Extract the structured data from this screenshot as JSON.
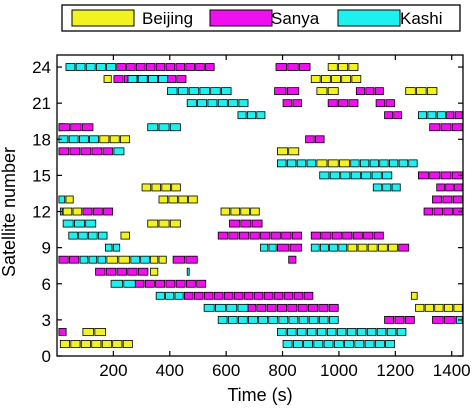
{
  "chart_data": {
    "type": "scatter",
    "xlabel": "Time (s)",
    "ylabel": "Satellite number",
    "xlim": [
      0,
      1440
    ],
    "ylim": [
      0,
      25
    ],
    "xticks": [
      200,
      400,
      600,
      800,
      1000,
      1200,
      1400
    ],
    "yticks": [
      0,
      3,
      6,
      9,
      12,
      15,
      18,
      21,
      24
    ],
    "legend_position": "top",
    "grid": false,
    "series": [
      {
        "name": "Beijing",
        "color": "#f2f221",
        "intervals": [
          {
            "sat": 1,
            "start": 10,
            "end": 270
          },
          {
            "sat": 2,
            "start": 90,
            "end": 175
          },
          {
            "sat": 4,
            "start": 1270,
            "end": 1440
          },
          {
            "sat": 5,
            "start": 1255,
            "end": 1280
          },
          {
            "sat": 7,
            "start": 330,
            "end": 360
          },
          {
            "sat": 8,
            "start": 175,
            "end": 260
          },
          {
            "sat": 8,
            "start": 330,
            "end": 390
          },
          {
            "sat": 9,
            "start": 1030,
            "end": 1210
          },
          {
            "sat": 10,
            "start": 225,
            "end": 260
          },
          {
            "sat": 11,
            "start": 320,
            "end": 440
          },
          {
            "sat": 12,
            "start": 20,
            "end": 90
          },
          {
            "sat": 12,
            "start": 580,
            "end": 720
          },
          {
            "sat": 13,
            "start": 30,
            "end": 60
          },
          {
            "sat": 13,
            "start": 360,
            "end": 500
          },
          {
            "sat": 14,
            "start": 300,
            "end": 440
          },
          {
            "sat": 16,
            "start": 920,
            "end": 1040
          },
          {
            "sat": 17,
            "start": 780,
            "end": 860
          },
          {
            "sat": 18,
            "start": 150,
            "end": 260
          },
          {
            "sat": 19,
            "start": 5,
            "end": 30
          },
          {
            "sat": 22,
            "start": 1235,
            "end": 1350
          },
          {
            "sat": 22,
            "start": 920,
            "end": 1000
          },
          {
            "sat": 23,
            "start": 900,
            "end": 1080
          },
          {
            "sat": 23,
            "start": 165,
            "end": 195
          },
          {
            "sat": 24,
            "start": 960,
            "end": 1070
          }
        ]
      },
      {
        "name": "Sanya",
        "color": "#ee10ee",
        "intervals": [
          {
            "sat": 2,
            "start": 5,
            "end": 35
          },
          {
            "sat": 3,
            "start": 1160,
            "end": 1270
          },
          {
            "sat": 3,
            "start": 1330,
            "end": 1415
          },
          {
            "sat": 4,
            "start": 670,
            "end": 1000
          },
          {
            "sat": 5,
            "start": 450,
            "end": 910
          },
          {
            "sat": 6,
            "start": 275,
            "end": 530
          },
          {
            "sat": 7,
            "start": 135,
            "end": 325
          },
          {
            "sat": 8,
            "start": 5,
            "end": 80
          },
          {
            "sat": 8,
            "start": 410,
            "end": 500
          },
          {
            "sat": 8,
            "start": 820,
            "end": 850
          },
          {
            "sat": 9,
            "start": 780,
            "end": 870
          },
          {
            "sat": 9,
            "start": 1210,
            "end": 1250
          },
          {
            "sat": 10,
            "start": 570,
            "end": 870
          },
          {
            "sat": 10,
            "start": 900,
            "end": 1160
          },
          {
            "sat": 11,
            "start": 610,
            "end": 730
          },
          {
            "sat": 12,
            "start": 90,
            "end": 200
          },
          {
            "sat": 12,
            "start": 1300,
            "end": 1440
          },
          {
            "sat": 13,
            "start": 1330,
            "end": 1440
          },
          {
            "sat": 14,
            "start": 1345,
            "end": 1440
          },
          {
            "sat": 15,
            "start": 1280,
            "end": 1440
          },
          {
            "sat": 17,
            "start": 5,
            "end": 200
          },
          {
            "sat": 18,
            "start": 880,
            "end": 950
          },
          {
            "sat": 19,
            "start": 5,
            "end": 130
          },
          {
            "sat": 19,
            "start": 1320,
            "end": 1440
          },
          {
            "sat": 20,
            "start": 1160,
            "end": 1225
          },
          {
            "sat": 20,
            "start": 1380,
            "end": 1440
          },
          {
            "sat": 21,
            "start": 800,
            "end": 870
          },
          {
            "sat": 21,
            "start": 960,
            "end": 1070
          },
          {
            "sat": 21,
            "start": 1130,
            "end": 1200
          },
          {
            "sat": 22,
            "start": 770,
            "end": 860
          },
          {
            "sat": 22,
            "start": 1060,
            "end": 1160
          },
          {
            "sat": 23,
            "start": 200,
            "end": 460
          },
          {
            "sat": 24,
            "start": 210,
            "end": 560
          },
          {
            "sat": 24,
            "start": 775,
            "end": 900
          }
        ]
      },
      {
        "name": "Kashi",
        "color": "#1ef0f0",
        "intervals": [
          {
            "sat": 1,
            "start": 800,
            "end": 1200
          },
          {
            "sat": 2,
            "start": 780,
            "end": 1240
          },
          {
            "sat": 3,
            "start": 570,
            "end": 1000
          },
          {
            "sat": 3,
            "start": 1415,
            "end": 1440
          },
          {
            "sat": 4,
            "start": 520,
            "end": 680
          },
          {
            "sat": 5,
            "start": 350,
            "end": 450
          },
          {
            "sat": 6,
            "start": 190,
            "end": 280
          },
          {
            "sat": 7,
            "start": 460,
            "end": 470
          },
          {
            "sat": 8,
            "start": 80,
            "end": 175
          },
          {
            "sat": 8,
            "start": 260,
            "end": 330
          },
          {
            "sat": 9,
            "start": 170,
            "end": 225
          },
          {
            "sat": 9,
            "start": 720,
            "end": 780
          },
          {
            "sat": 9,
            "start": 900,
            "end": 1030
          },
          {
            "sat": 10,
            "start": 40,
            "end": 180
          },
          {
            "sat": 11,
            "start": 20,
            "end": 140
          },
          {
            "sat": 12,
            "start": 10,
            "end": 20
          },
          {
            "sat": 13,
            "start": 5,
            "end": 30
          },
          {
            "sat": 14,
            "start": 1120,
            "end": 1220
          },
          {
            "sat": 15,
            "start": 930,
            "end": 1190
          },
          {
            "sat": 16,
            "start": 780,
            "end": 920
          },
          {
            "sat": 16,
            "start": 1040,
            "end": 1280
          },
          {
            "sat": 17,
            "start": 200,
            "end": 240
          },
          {
            "sat": 18,
            "start": 5,
            "end": 150
          },
          {
            "sat": 19,
            "start": 320,
            "end": 440
          },
          {
            "sat": 20,
            "start": 640,
            "end": 740
          },
          {
            "sat": 20,
            "start": 1280,
            "end": 1380
          },
          {
            "sat": 21,
            "start": 460,
            "end": 680
          },
          {
            "sat": 22,
            "start": 390,
            "end": 620
          },
          {
            "sat": 23,
            "start": 250,
            "end": 395
          },
          {
            "sat": 24,
            "start": 30,
            "end": 210
          }
        ]
      }
    ]
  }
}
